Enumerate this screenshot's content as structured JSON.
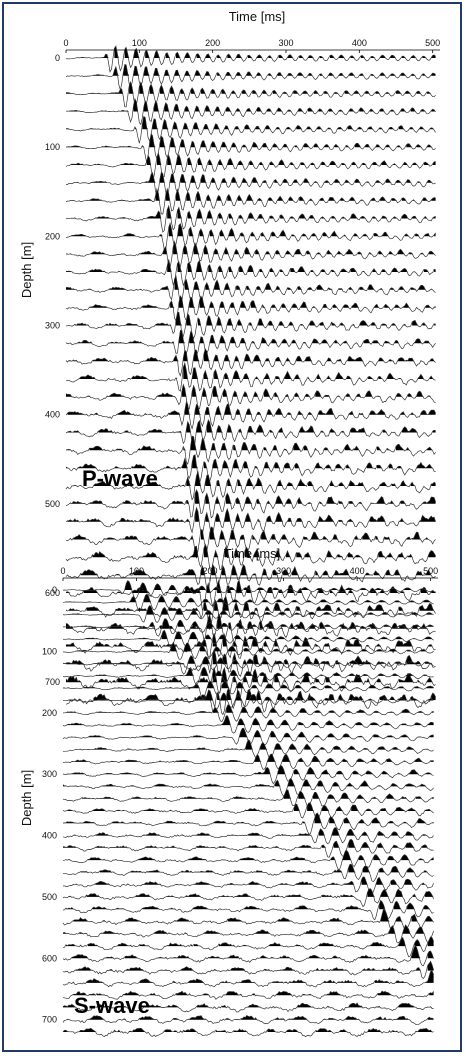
{
  "chart_data": [
    {
      "type": "seismic-wiggle",
      "panel_label": "P-wave",
      "xlabel": "Time [ms]",
      "ylabel": "Depth [m]",
      "xlim": [
        0,
        510
      ],
      "ylim": [
        0,
        720
      ],
      "x_ticks": [
        0,
        100,
        200,
        300,
        400,
        500
      ],
      "y_ticks": [
        0,
        100,
        200,
        300,
        400,
        500,
        600,
        700
      ],
      "trace_depth_start": 0,
      "trace_depth_step": 20,
      "trace_count": 37,
      "first_arrival": {
        "depth": [
          0,
          100,
          200,
          300,
          400,
          500,
          600,
          700
        ],
        "time": [
          60,
          110,
          135,
          150,
          160,
          170,
          185,
          200
        ]
      }
    },
    {
      "type": "seismic-wiggle",
      "panel_label": "S-wave",
      "xlabel": "Time [ms]",
      "ylabel": "Depth [m]",
      "xlim": [
        0,
        510
      ],
      "ylim": [
        0,
        720
      ],
      "x_ticks": [
        0,
        100,
        200,
        300,
        400,
        500
      ],
      "y_ticks": [
        0,
        100,
        200,
        300,
        400,
        500,
        600,
        700
      ],
      "trace_depth_start": 0,
      "trace_depth_step": 20,
      "trace_count": 37,
      "first_arrival": {
        "depth": [
          0,
          100,
          200,
          300,
          400
        ],
        "time": [
          85,
          150,
          210,
          280,
          345
        ]
      }
    }
  ]
}
